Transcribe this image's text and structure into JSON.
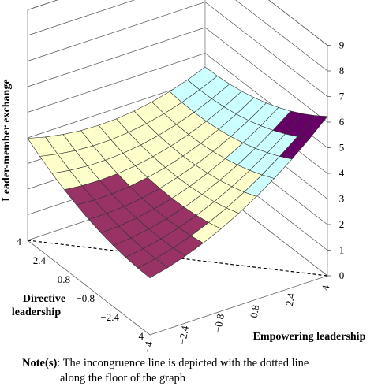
{
  "chart_data": {
    "type": "surface3d",
    "title": "",
    "zlabel": "Leader-member exchange",
    "xlabel": "Empowering leadership",
    "ylabel": "Directive leadership",
    "zlim": [
      0,
      9
    ],
    "z_ticks": [
      "0",
      "1",
      "2",
      "3",
      "4",
      "5",
      "6",
      "7",
      "8",
      "9"
    ],
    "x_ticks": [
      "−4",
      "−2.4",
      "−0.8",
      "0.8",
      "2.4",
      "4"
    ],
    "y_ticks": [
      "−4",
      "−2.4",
      "−0.8",
      "0.8",
      "2.4",
      "4"
    ],
    "x_range": [
      -4,
      4
    ],
    "y_range": [
      -4,
      4
    ],
    "grid": [
      -4,
      -3.2,
      -2.4,
      -1.6,
      -0.8,
      0,
      0.8,
      1.6,
      2.4,
      3.2,
      4
    ],
    "surface_approx": "z ≈ 3.5 + 0.22·x + 0.26·(x−y)²/… (congruence-effect surface, low along incongruence line, rising toward high empowering & low directive)",
    "bands": [
      {
        "range": [
          0,
          2
        ],
        "color": "#9999ff"
      },
      {
        "range": [
          2,
          3
        ],
        "color": "#993366"
      },
      {
        "range": [
          3,
          4
        ],
        "color": "#ffffcc"
      },
      {
        "range": [
          4,
          5
        ],
        "color": "#ccffff"
      },
      {
        "range": [
          5,
          6
        ],
        "color": "#660066"
      },
      {
        "range": [
          6,
          7
        ],
        "color": "#ff8080"
      },
      {
        "range": [
          7,
          9
        ],
        "color": "#9999ff"
      }
    ],
    "incongruence_line": "dotted line along the floor"
  },
  "note": {
    "label": "Note(s)",
    "text_line1": ": The incongruence line is depicted with the dotted line",
    "text_line2": "along the floor of the graph"
  }
}
